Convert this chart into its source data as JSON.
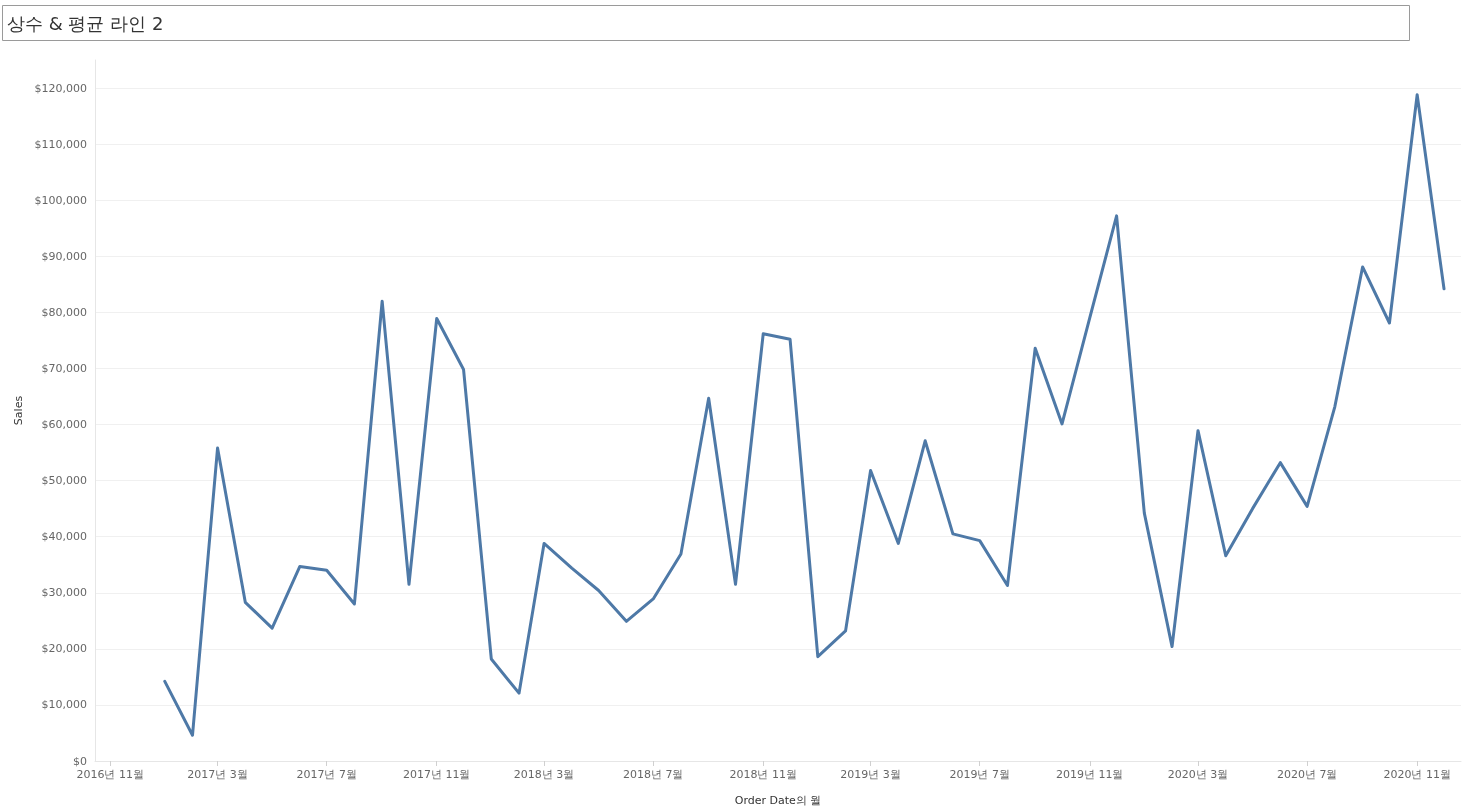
{
  "chart_data": {
    "type": "line",
    "title": "상수 & 평균 라인 2",
    "xlabel": "Order Date의 월",
    "ylabel": "Sales",
    "x": [
      "2017-01",
      "2017-02",
      "2017-03",
      "2017-04",
      "2017-05",
      "2017-06",
      "2017-07",
      "2017-08",
      "2017-09",
      "2017-10",
      "2017-11",
      "2017-12",
      "2018-01",
      "2018-02",
      "2018-03",
      "2018-04",
      "2018-05",
      "2018-06",
      "2018-07",
      "2018-08",
      "2018-09",
      "2018-10",
      "2018-11",
      "2018-12",
      "2019-01",
      "2019-02",
      "2019-03",
      "2019-04",
      "2019-05",
      "2019-06",
      "2019-07",
      "2019-08",
      "2019-09",
      "2019-10",
      "2019-11",
      "2019-12",
      "2020-01",
      "2020-02",
      "2020-03",
      "2020-04",
      "2020-05",
      "2020-06",
      "2020-07",
      "2020-08",
      "2020-09",
      "2020-10",
      "2020-11",
      "2020-12"
    ],
    "series": [
      {
        "color": "#4e79a7",
        "values": [
          14200,
          4600,
          55800,
          28300,
          23700,
          34700,
          34000,
          28000,
          82000,
          31500,
          78900,
          69800,
          18200,
          12100,
          38800,
          34400,
          30400,
          24900,
          28900,
          36900,
          64700,
          31500,
          76200,
          75200,
          18600,
          23200,
          51800,
          38800,
          57100,
          40500,
          39300,
          31300,
          73600,
          60100,
          79000,
          97200,
          44200,
          20400,
          58900,
          36600,
          45000,
          53200,
          45400,
          63200,
          88100,
          78100,
          118800,
          84200
        ]
      }
    ],
    "ylim": [
      0,
      125000
    ],
    "yticks": [
      {
        "value": 0,
        "label": "$0"
      },
      {
        "value": 10000,
        "label": "$10,000"
      },
      {
        "value": 20000,
        "label": "$20,000"
      },
      {
        "value": 30000,
        "label": "$30,000"
      },
      {
        "value": 40000,
        "label": "$40,000"
      },
      {
        "value": 50000,
        "label": "$50,000"
      },
      {
        "value": 60000,
        "label": "$60,000"
      },
      {
        "value": 70000,
        "label": "$70,000"
      },
      {
        "value": 80000,
        "label": "$80,000"
      },
      {
        "value": 90000,
        "label": "$90,000"
      },
      {
        "value": 100000,
        "label": "$100,000"
      },
      {
        "value": 110000,
        "label": "$110,000"
      },
      {
        "value": 120000,
        "label": "$120,000"
      }
    ],
    "xlim": [
      "2016-10-15",
      "2020-12-20"
    ],
    "xticks": [
      {
        "value": "2016-11",
        "label": "2016년 11월"
      },
      {
        "value": "2017-03",
        "label": "2017년 3월"
      },
      {
        "value": "2017-07",
        "label": "2017년 7월"
      },
      {
        "value": "2017-11",
        "label": "2017년 11월"
      },
      {
        "value": "2018-03",
        "label": "2018년 3월"
      },
      {
        "value": "2018-07",
        "label": "2018년 7월"
      },
      {
        "value": "2018-11",
        "label": "2018년 11월"
      },
      {
        "value": "2019-03",
        "label": "2019년 3월"
      },
      {
        "value": "2019-07",
        "label": "2019년 7월"
      },
      {
        "value": "2019-11",
        "label": "2019년 11월"
      },
      {
        "value": "2020-03",
        "label": "2020년 3월"
      },
      {
        "value": "2020-07",
        "label": "2020년 7월"
      },
      {
        "value": "2020-11",
        "label": "2020년 11월"
      }
    ],
    "grid": "y",
    "marker": "none",
    "line_style": "solid"
  }
}
